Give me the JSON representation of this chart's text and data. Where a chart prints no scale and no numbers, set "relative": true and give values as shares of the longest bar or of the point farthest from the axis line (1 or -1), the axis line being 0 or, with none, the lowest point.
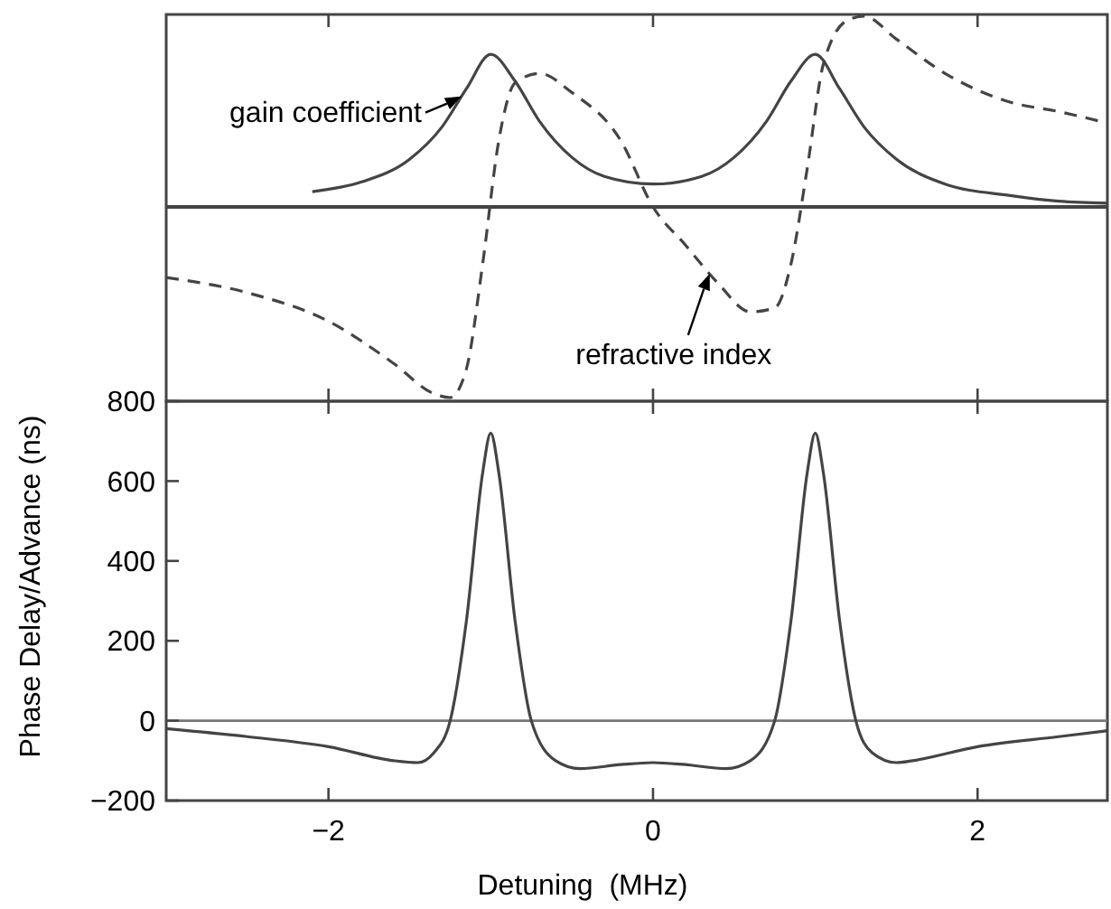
{
  "chart_data": [
    {
      "type": "line",
      "relative": true,
      "xlim": [
        -3,
        2.8
      ],
      "tick_labels": false,
      "series": [
        {
          "color": "#444444",
          "line_style": "solid",
          "x": [
            -2.1,
            -1.8,
            -1.5,
            -1.3,
            -1.15,
            -1.0,
            -0.85,
            -0.7,
            -0.5,
            -0.3,
            0,
            0.3,
            0.5,
            0.7,
            0.85,
            1.0,
            1.15,
            1.3,
            1.5,
            1.8,
            2.2,
            2.5,
            2.8
          ],
          "values": [
            0.08,
            0.13,
            0.25,
            0.42,
            0.62,
            0.8,
            0.66,
            0.45,
            0.26,
            0.16,
            0.12,
            0.16,
            0.26,
            0.45,
            0.66,
            0.8,
            0.62,
            0.42,
            0.25,
            0.12,
            0.06,
            0.03,
            0.02
          ]
        },
        {
          "color": "#444444",
          "line_style": "dashed",
          "x": [
            -3,
            -2.5,
            -2.0,
            -1.6,
            -1.35,
            -1.25,
            -1.15,
            -1.05,
            -0.95,
            -0.85,
            -0.7,
            -0.5,
            -0.2,
            0,
            0.2,
            0.4,
            0.6,
            0.75,
            0.85,
            0.95,
            1.05,
            1.2,
            1.3,
            1.5,
            1.8,
            2.2,
            2.5,
            2.8
          ],
          "values": [
            -0.37,
            -0.45,
            -0.6,
            -0.82,
            -0.98,
            -1.0,
            -0.85,
            -0.3,
            0.35,
            0.65,
            0.7,
            0.6,
            0.35,
            0,
            -0.2,
            -0.4,
            -0.55,
            -0.53,
            -0.3,
            0.2,
            0.75,
            0.98,
            1.0,
            0.88,
            0.7,
            0.55,
            0.5,
            0.44
          ]
        }
      ],
      "annotations": [
        {
          "text": "gain coefficient",
          "x": -1.18,
          "y": 0.58
        },
        {
          "text": "refractive index",
          "x": 0.35,
          "y": -0.35
        }
      ]
    },
    {
      "type": "line",
      "xlim": [
        -3,
        2.8
      ],
      "ylim": [
        -200,
        800
      ],
      "xticks": [
        {
          "value": -2,
          "label": "−2"
        },
        0,
        2
      ],
      "yticks": [
        {
          "value": -200,
          "label": "−200"
        },
        0,
        200,
        400,
        600,
        800
      ],
      "xlabel": "Detuning  (MHz)",
      "ylabel": "Phase Delay/Advance (ns)",
      "ref_lines": [
        {
          "axis": "y",
          "value": 0,
          "color": "#777777"
        }
      ],
      "series": [
        {
          "color": "#444444",
          "x": [
            -3,
            -2.5,
            -2,
            -1.6,
            -1.45,
            -1.35,
            -1.25,
            -1.15,
            -1.05,
            -1,
            -0.95,
            -0.85,
            -0.75,
            -0.6,
            -0.45,
            -0.2,
            0,
            0.2,
            0.45,
            0.6,
            0.75,
            0.85,
            0.95,
            1,
            1.05,
            1.15,
            1.25,
            1.35,
            1.5,
            1.6,
            2,
            2.5,
            2.8
          ],
          "values": [
            -20,
            -40,
            -65,
            -100,
            -105,
            -80,
            0,
            250,
            620,
            720,
            620,
            250,
            0,
            -100,
            -120,
            -110,
            -105,
            -110,
            -120,
            -100,
            0,
            250,
            620,
            720,
            620,
            250,
            0,
            -80,
            -105,
            -100,
            -65,
            -40,
            -25
          ]
        }
      ]
    }
  ]
}
